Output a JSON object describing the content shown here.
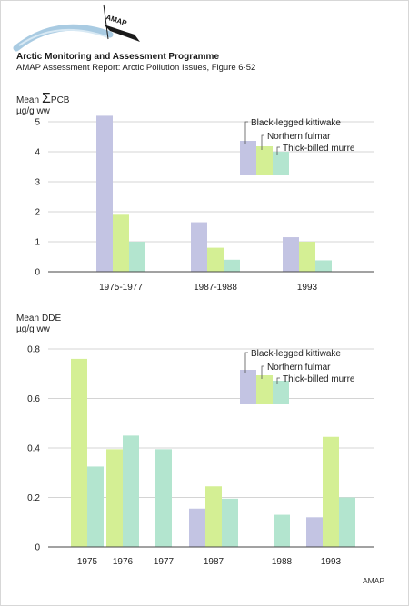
{
  "header": {
    "logo_text": "AMAP",
    "title": "Arctic Monitoring and Assessment Programme",
    "subtitle": "AMAP Assessment Report: Arctic Pollution Issues, Figure 6·52"
  },
  "footer": {
    "credit": "AMAP"
  },
  "colors": {
    "black_legged_kittiwake": "#c3c4e3",
    "northern_fulmar": "#d4ef94",
    "thick_billed_murre": "#b3e5cf"
  },
  "chart_data": [
    {
      "type": "bar",
      "ylabel_prefix": "Mean",
      "ylabel_symbol": "Σ",
      "ylabel_compound": "PCB",
      "yunit": "µg/g ww",
      "ylim": [
        0,
        5
      ],
      "yticks": [
        0,
        1,
        2,
        3,
        4,
        5
      ],
      "legend_position": "top-right",
      "series": [
        {
          "name": "Black-legged kittiwake",
          "color": "#c3c4e3"
        },
        {
          "name": "Northern fulmar",
          "color": "#d4ef94"
        },
        {
          "name": "Thick-billed murre",
          "color": "#b3e5cf"
        }
      ],
      "groups": [
        {
          "label": "1975-1977",
          "values": [
            5.2,
            1.9,
            1.0
          ]
        },
        {
          "label": "1987-1988",
          "values": [
            1.65,
            0.8,
            0.4
          ]
        },
        {
          "label": "1993",
          "values": [
            1.15,
            1.0,
            0.38
          ]
        }
      ]
    },
    {
      "type": "bar",
      "ylabel_prefix": "Mean",
      "ylabel_compound": "DDE",
      "yunit": "µg/g ww",
      "ylim": [
        0,
        0.8
      ],
      "yticks": [
        0,
        0.2,
        0.4,
        0.6,
        0.8
      ],
      "legend_position": "top-right",
      "series": [
        {
          "name": "Black-legged kittiwake",
          "color": "#c3c4e3"
        },
        {
          "name": "Northern fulmar",
          "color": "#d4ef94"
        },
        {
          "name": "Thick-billed murre",
          "color": "#b3e5cf"
        }
      ],
      "groups": [
        {
          "label": "1975",
          "values": [
            null,
            0.76,
            0.325
          ]
        },
        {
          "label": "1976",
          "values": [
            null,
            0.395,
            0.45
          ]
        },
        {
          "label": "1977",
          "values": [
            null,
            null,
            0.395
          ]
        },
        {
          "label": "1987",
          "values": [
            0.155,
            0.245,
            0.195
          ]
        },
        {
          "label": "1988",
          "values": [
            null,
            null,
            0.13
          ]
        },
        {
          "label": "1993",
          "values": [
            0.12,
            0.445,
            0.2
          ]
        }
      ]
    }
  ]
}
